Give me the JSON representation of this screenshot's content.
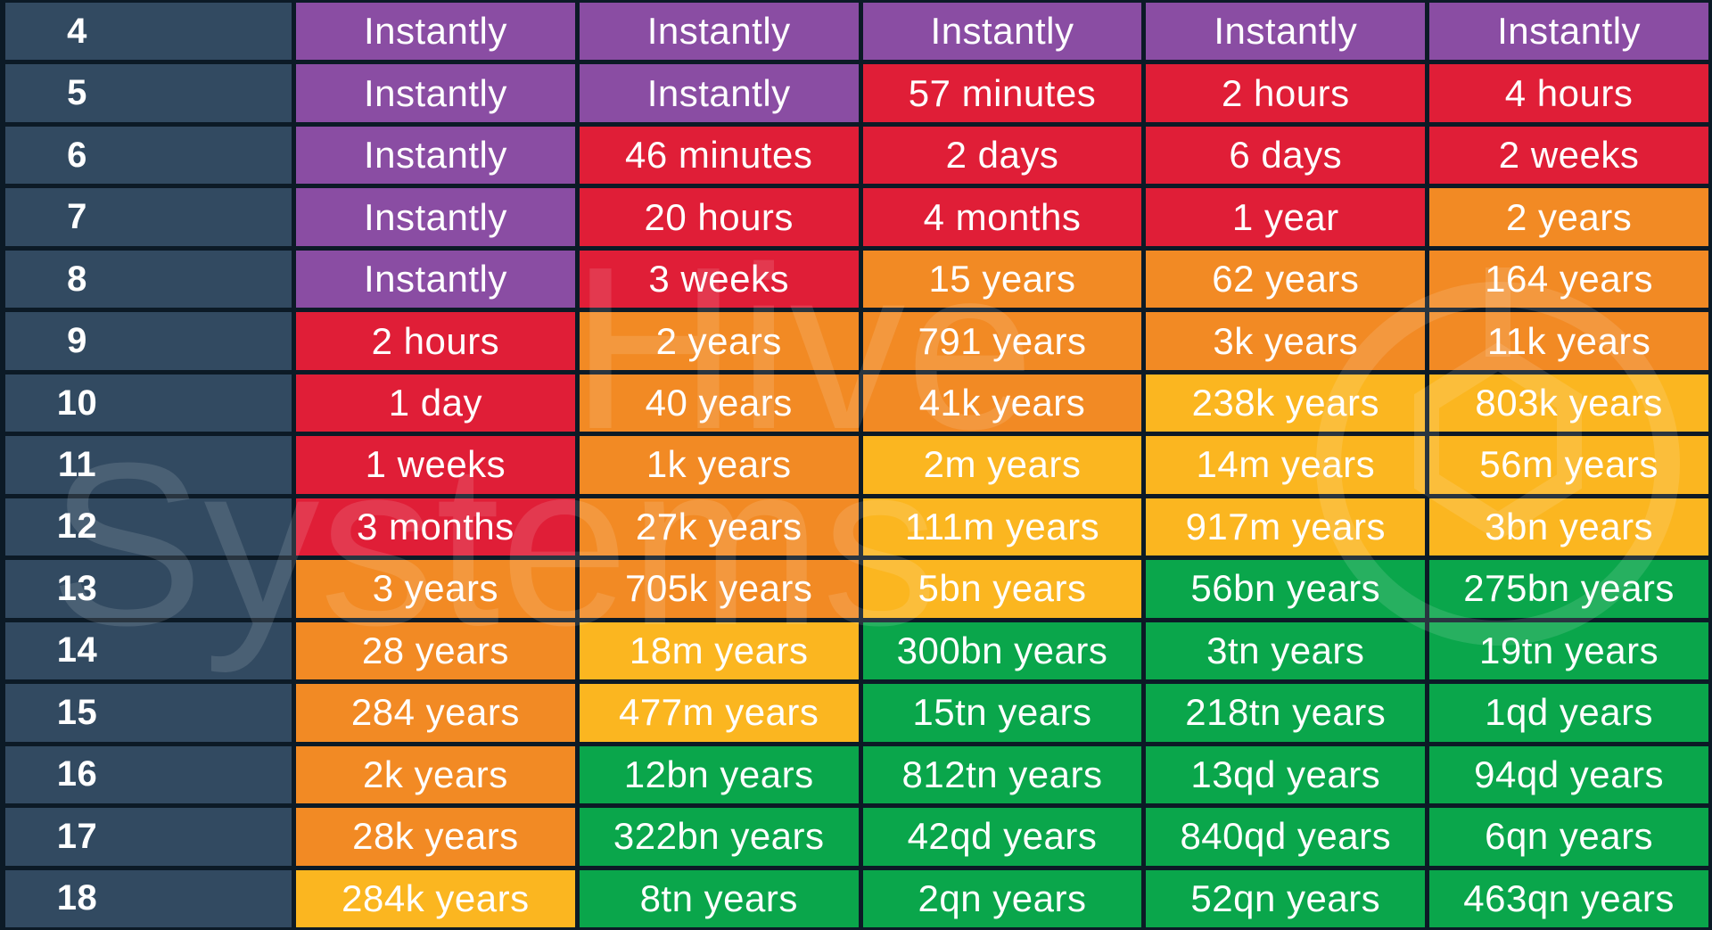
{
  "colors": {
    "row_header": "#324a61",
    "instantly": "#8a4da3",
    "red": "#e01e37",
    "orange": "#f28a24",
    "yellow": "#fbb620",
    "green": "#0aa64b",
    "background": "#0c1a26"
  },
  "watermark": {
    "line1": "Hive",
    "line2": "Systems"
  },
  "chart_data": {
    "type": "table",
    "rows": [
      {
        "label": "4",
        "cells": [
          {
            "text": "Instantly",
            "color": "instantly"
          },
          {
            "text": "Instantly",
            "color": "instantly"
          },
          {
            "text": "Instantly",
            "color": "instantly"
          },
          {
            "text": "Instantly",
            "color": "instantly"
          },
          {
            "text": "Instantly",
            "color": "instantly"
          }
        ]
      },
      {
        "label": "5",
        "cells": [
          {
            "text": "Instantly",
            "color": "instantly"
          },
          {
            "text": "Instantly",
            "color": "instantly"
          },
          {
            "text": "57 minutes",
            "color": "red"
          },
          {
            "text": "2 hours",
            "color": "red"
          },
          {
            "text": "4 hours",
            "color": "red"
          }
        ]
      },
      {
        "label": "6",
        "cells": [
          {
            "text": "Instantly",
            "color": "instantly"
          },
          {
            "text": "46 minutes",
            "color": "red"
          },
          {
            "text": "2 days",
            "color": "red"
          },
          {
            "text": "6 days",
            "color": "red"
          },
          {
            "text": "2 weeks",
            "color": "red"
          }
        ]
      },
      {
        "label": "7",
        "cells": [
          {
            "text": "Instantly",
            "color": "instantly"
          },
          {
            "text": "20 hours",
            "color": "red"
          },
          {
            "text": "4 months",
            "color": "red"
          },
          {
            "text": "1 year",
            "color": "red"
          },
          {
            "text": "2 years",
            "color": "orange"
          }
        ]
      },
      {
        "label": "8",
        "cells": [
          {
            "text": "Instantly",
            "color": "instantly"
          },
          {
            "text": "3 weeks",
            "color": "red"
          },
          {
            "text": "15 years",
            "color": "orange"
          },
          {
            "text": "62 years",
            "color": "orange"
          },
          {
            "text": "164 years",
            "color": "orange"
          }
        ]
      },
      {
        "label": "9",
        "cells": [
          {
            "text": "2 hours",
            "color": "red"
          },
          {
            "text": "2 years",
            "color": "orange"
          },
          {
            "text": "791 years",
            "color": "orange"
          },
          {
            "text": "3k years",
            "color": "orange"
          },
          {
            "text": "11k years",
            "color": "orange"
          }
        ]
      },
      {
        "label": "10",
        "cells": [
          {
            "text": "1 day",
            "color": "red"
          },
          {
            "text": "40 years",
            "color": "orange"
          },
          {
            "text": "41k years",
            "color": "orange"
          },
          {
            "text": "238k years",
            "color": "yellow"
          },
          {
            "text": "803k years",
            "color": "yellow"
          }
        ]
      },
      {
        "label": "11",
        "cells": [
          {
            "text": "1 weeks",
            "color": "red"
          },
          {
            "text": "1k years",
            "color": "orange"
          },
          {
            "text": "2m years",
            "color": "yellow"
          },
          {
            "text": "14m years",
            "color": "yellow"
          },
          {
            "text": "56m years",
            "color": "yellow"
          }
        ]
      },
      {
        "label": "12",
        "cells": [
          {
            "text": "3 months",
            "color": "red"
          },
          {
            "text": "27k years",
            "color": "orange"
          },
          {
            "text": "111m years",
            "color": "yellow"
          },
          {
            "text": "917m years",
            "color": "yellow"
          },
          {
            "text": "3bn years",
            "color": "yellow"
          }
        ]
      },
      {
        "label": "13",
        "cells": [
          {
            "text": "3 years",
            "color": "orange"
          },
          {
            "text": "705k years",
            "color": "orange"
          },
          {
            "text": "5bn years",
            "color": "yellow"
          },
          {
            "text": "56bn years",
            "color": "green"
          },
          {
            "text": "275bn years",
            "color": "green"
          }
        ]
      },
      {
        "label": "14",
        "cells": [
          {
            "text": "28 years",
            "color": "orange"
          },
          {
            "text": "18m years",
            "color": "yellow"
          },
          {
            "text": "300bn years",
            "color": "green"
          },
          {
            "text": "3tn years",
            "color": "green"
          },
          {
            "text": "19tn years",
            "color": "green"
          }
        ]
      },
      {
        "label": "15",
        "cells": [
          {
            "text": "284 years",
            "color": "orange"
          },
          {
            "text": "477m years",
            "color": "yellow"
          },
          {
            "text": "15tn years",
            "color": "green"
          },
          {
            "text": "218tn years",
            "color": "green"
          },
          {
            "text": "1qd years",
            "color": "green"
          }
        ]
      },
      {
        "label": "16",
        "cells": [
          {
            "text": "2k years",
            "color": "orange"
          },
          {
            "text": "12bn years",
            "color": "green"
          },
          {
            "text": "812tn years",
            "color": "green"
          },
          {
            "text": "13qd years",
            "color": "green"
          },
          {
            "text": "94qd years",
            "color": "green"
          }
        ]
      },
      {
        "label": "17",
        "cells": [
          {
            "text": "28k years",
            "color": "orange"
          },
          {
            "text": "322bn years",
            "color": "green"
          },
          {
            "text": "42qd years",
            "color": "green"
          },
          {
            "text": "840qd years",
            "color": "green"
          },
          {
            "text": "6qn years",
            "color": "green"
          }
        ]
      },
      {
        "label": "18",
        "cells": [
          {
            "text": "284k years",
            "color": "yellow"
          },
          {
            "text": "8tn years",
            "color": "green"
          },
          {
            "text": "2qn years",
            "color": "green"
          },
          {
            "text": "52qn years",
            "color": "green"
          },
          {
            "text": "463qn years",
            "color": "green"
          }
        ]
      }
    ]
  }
}
